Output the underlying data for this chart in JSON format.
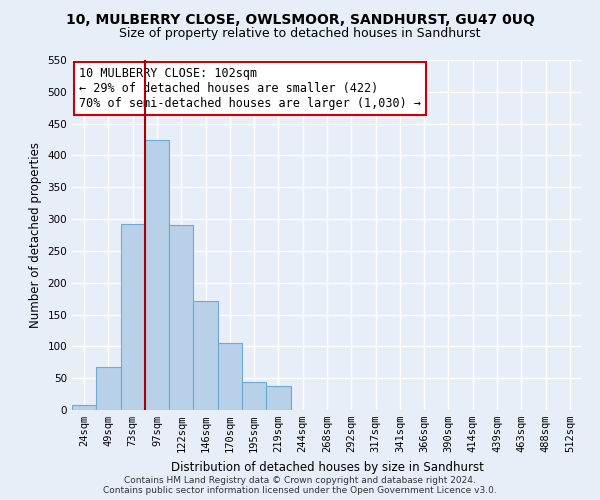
{
  "title": "10, MULBERRY CLOSE, OWLSMOOR, SANDHURST, GU47 0UQ",
  "subtitle": "Size of property relative to detached houses in Sandhurst",
  "xlabel": "Distribution of detached houses by size in Sandhurst",
  "ylabel": "Number of detached properties",
  "categories": [
    "24sqm",
    "49sqm",
    "73sqm",
    "97sqm",
    "122sqm",
    "146sqm",
    "170sqm",
    "195sqm",
    "219sqm",
    "244sqm",
    "268sqm",
    "292sqm",
    "317sqm",
    "341sqm",
    "366sqm",
    "390sqm",
    "414sqm",
    "439sqm",
    "463sqm",
    "488sqm",
    "512sqm"
  ],
  "values": [
    8,
    68,
    292,
    424,
    291,
    172,
    105,
    44,
    37,
    0,
    0,
    0,
    0,
    0,
    0,
    0,
    0,
    0,
    0,
    0,
    0
  ],
  "bar_color": "#b8d0e8",
  "bar_edge_color": "#6aaad4",
  "background_color": "#e8eef8",
  "grid_color": "#ffffff",
  "annotation_box_text": "10 MULBERRY CLOSE: 102sqm\n← 29% of detached houses are smaller (422)\n70% of semi-detached houses are larger (1,030) →",
  "annotation_box_color": "#ffffff",
  "annotation_box_edge_color": "#cc0000",
  "vline_color": "#aa0000",
  "vline_x_index": 3,
  "ylim": [
    0,
    550
  ],
  "yticks": [
    0,
    50,
    100,
    150,
    200,
    250,
    300,
    350,
    400,
    450,
    500,
    550
  ],
  "footer_text": "Contains HM Land Registry data © Crown copyright and database right 2024.\nContains public sector information licensed under the Open Government Licence v3.0.",
  "title_fontsize": 10,
  "subtitle_fontsize": 9,
  "axis_label_fontsize": 8.5,
  "tick_fontsize": 7.5,
  "annotation_fontsize": 8.5,
  "footer_fontsize": 6.5
}
